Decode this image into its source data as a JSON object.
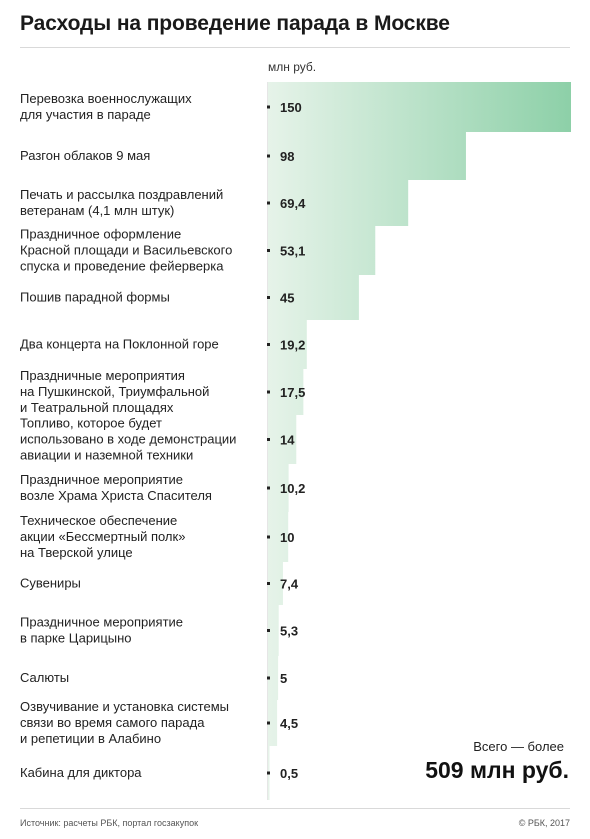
{
  "colors": {
    "bar_light": "#e6f3e9",
    "bar_dark": "#8dd0a8",
    "tick": "#222222",
    "axis": "#cccccc"
  },
  "chart_data": {
    "type": "bar",
    "orientation": "horizontal",
    "title": "Расходы на проведение парада в Москве",
    "unit": "млн руб.",
    "xlim": [
      0,
      150
    ],
    "grid": false,
    "categories": [
      [
        "Перевозка военнослужащих",
        "для участия в параде"
      ],
      [
        "Разгон облаков 9 мая"
      ],
      [
        "Печать и рассылка поздравлений",
        "ветеранам (4,1 млн штук)"
      ],
      [
        "Праздничное оформление",
        "Красной площади и Васильевского",
        "спуска и проведение фейерверка"
      ],
      [
        "Пошив парадной формы"
      ],
      [
        "Два концерта на Поклонной горе"
      ],
      [
        "Праздничные мероприятия",
        "на Пушкинской, Триумфальной",
        "и Театральной площадях"
      ],
      [
        "Топливо, которое будет",
        "использовано в ходе демонстрации",
        "авиации и наземной техники"
      ],
      [
        "Праздничное мероприятие",
        "возле Храма Христа Спасителя"
      ],
      [
        "Техническое обеспечение",
        "акции «Бессмертный полк»",
        "на Тверской улице"
      ],
      [
        "Сувениры"
      ],
      [
        "Праздничное мероприятие",
        "в парке Царицыно"
      ],
      [
        "Салюты"
      ],
      [
        "Озвучивание и установка системы",
        "связи во время самого парада",
        "и репетиции в Алабино"
      ],
      [
        "Кабина для диктора"
      ]
    ],
    "values": [
      150,
      98,
      69.4,
      53.1,
      45,
      19.2,
      17.5,
      14,
      10.2,
      10,
      7.4,
      5.3,
      5,
      4.5,
      0.5
    ],
    "value_labels": [
      "150",
      "98",
      "69,4",
      "53,1",
      "45",
      "19,2",
      "17,5",
      "14",
      "10,2",
      "10",
      "7,4",
      "5,3",
      "5",
      "4,5",
      "0,5"
    ]
  },
  "total": {
    "label": "Всего — более",
    "value": "509 млн руб."
  },
  "footer": {
    "source": "Источник: расчеты РБК, портал госзакупок",
    "copyright": "© РБК, 2017"
  }
}
